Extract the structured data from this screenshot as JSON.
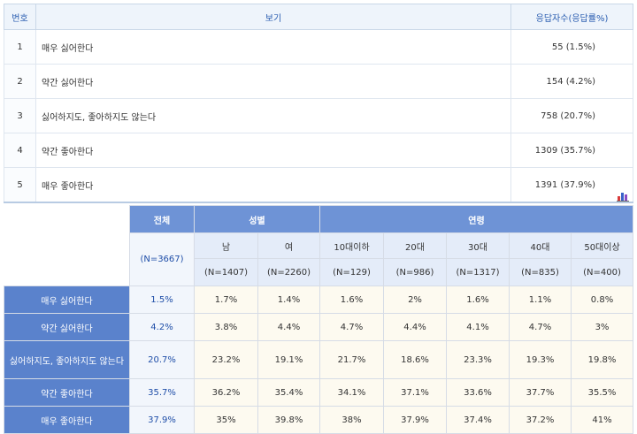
{
  "summary": {
    "headers": {
      "no": "번호",
      "option": "보기",
      "count": "응답자수(응답률%)"
    },
    "rows": [
      {
        "no": "1",
        "option": "매우 싫어한다",
        "count": "55 (1.5%)"
      },
      {
        "no": "2",
        "option": "약간 싫어한다",
        "count": "154 (4.2%)"
      },
      {
        "no": "3",
        "option": "싫어하지도, 좋아하지도 않는다",
        "count": "758 (20.7%)"
      },
      {
        "no": "4",
        "option": "약간 좋아한다",
        "count": "1309 (35.7%)"
      },
      {
        "no": "5",
        "option": "매우 좋아한다",
        "count": "1391 (37.9%)"
      }
    ]
  },
  "chart_icon": "bar-chart-icon",
  "crosstab": {
    "group_headers": {
      "total": "전체",
      "gender": "성별",
      "age": "연령"
    },
    "sub_headers": [
      "남",
      "여",
      "10대이하",
      "20대",
      "30대",
      "40대",
      "50대이상"
    ],
    "total_n": "(N=3667)",
    "n_values": [
      "(N=1407)",
      "(N=2260)",
      "(N=129)",
      "(N=986)",
      "(N=1317)",
      "(N=835)",
      "(N=400)"
    ],
    "rows": [
      {
        "label": "매우 싫어한다",
        "total": "1.5%",
        "cells": [
          "1.7%",
          "1.4%",
          "1.6%",
          "2%",
          "1.6%",
          "1.1%",
          "0.8%"
        ]
      },
      {
        "label": "약간 싫어한다",
        "total": "4.2%",
        "cells": [
          "3.8%",
          "4.4%",
          "4.7%",
          "4.4%",
          "4.1%",
          "4.7%",
          "3%"
        ]
      },
      {
        "label": "싫어하지도, 좋아하지도 않는다",
        "total": "20.7%",
        "cells": [
          "23.2%",
          "19.1%",
          "21.7%",
          "18.6%",
          "23.3%",
          "19.3%",
          "19.8%"
        ]
      },
      {
        "label": "약간 좋아한다",
        "total": "35.7%",
        "cells": [
          "36.2%",
          "35.4%",
          "34.1%",
          "37.1%",
          "33.6%",
          "37.7%",
          "35.5%"
        ]
      },
      {
        "label": "매우 좋아한다",
        "total": "37.9%",
        "cells": [
          "35%",
          "39.8%",
          "38%",
          "37.9%",
          "37.4%",
          "37.2%",
          "41%"
        ]
      }
    ]
  },
  "colors": {
    "header_blue": "#6e93d6",
    "row_label_blue": "#5a82cc",
    "header_text_blue": "#2a5db0",
    "cell_bg": "#fdfaf0"
  }
}
